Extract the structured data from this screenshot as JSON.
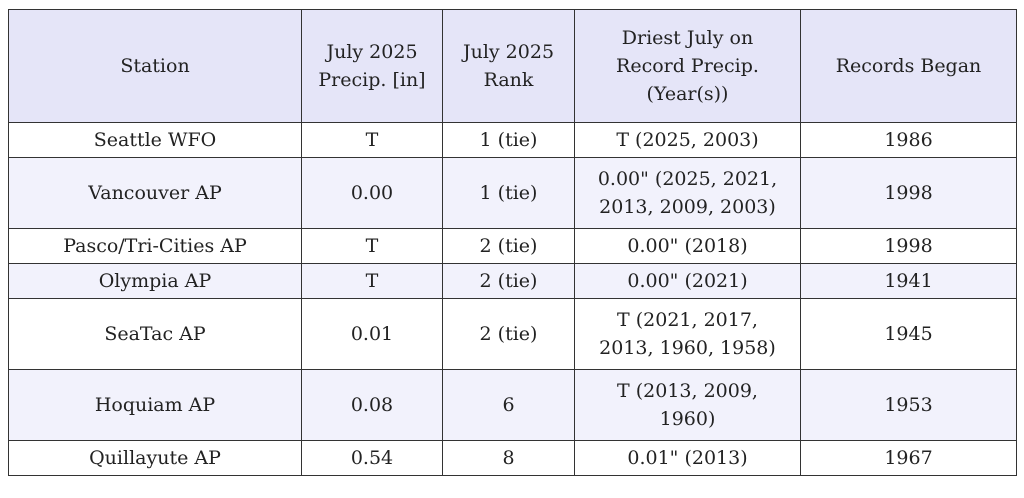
{
  "table": {
    "headers": [
      [
        "Station"
      ],
      [
        "July 2025",
        "Precip. [in]"
      ],
      [
        "July 2025",
        "Rank"
      ],
      [
        "Driest July on",
        "Record Precip.",
        "(Year(s))"
      ],
      [
        "Records Began"
      ]
    ],
    "rows": [
      {
        "station": "Seattle WFO",
        "precip": "T",
        "rank": "1 (tie)",
        "driest": [
          "T (2025, 2003)"
        ],
        "began": "1986"
      },
      {
        "station": "Vancouver AP",
        "precip": "0.00",
        "rank": "1 (tie)",
        "driest": [
          "0.00\" (2025, 2021,",
          "2013, 2009, 2003)"
        ],
        "began": "1998"
      },
      {
        "station": "Pasco/Tri-Cities AP",
        "precip": "T",
        "rank": "2 (tie)",
        "driest": [
          "0.00\" (2018)"
        ],
        "began": "1998"
      },
      {
        "station": "Olympia AP",
        "precip": "T",
        "rank": "2 (tie)",
        "driest": [
          "0.00\" (2021)"
        ],
        "began": "1941"
      },
      {
        "station": "SeaTac AP",
        "precip": "0.01",
        "rank": "2 (tie)",
        "driest": [
          "T (2021, 2017,",
          "2013, 1960, 1958)"
        ],
        "began": "1945"
      },
      {
        "station": "Hoquiam AP",
        "precip": "0.08",
        "rank": "6",
        "driest": [
          "T (2013, 2009,",
          "1960)"
        ],
        "began": "1953"
      },
      {
        "station": "Quillayute AP",
        "precip": "0.54",
        "rank": "8",
        "driest": [
          "0.01\" (2013)"
        ],
        "began": "1967"
      }
    ]
  }
}
